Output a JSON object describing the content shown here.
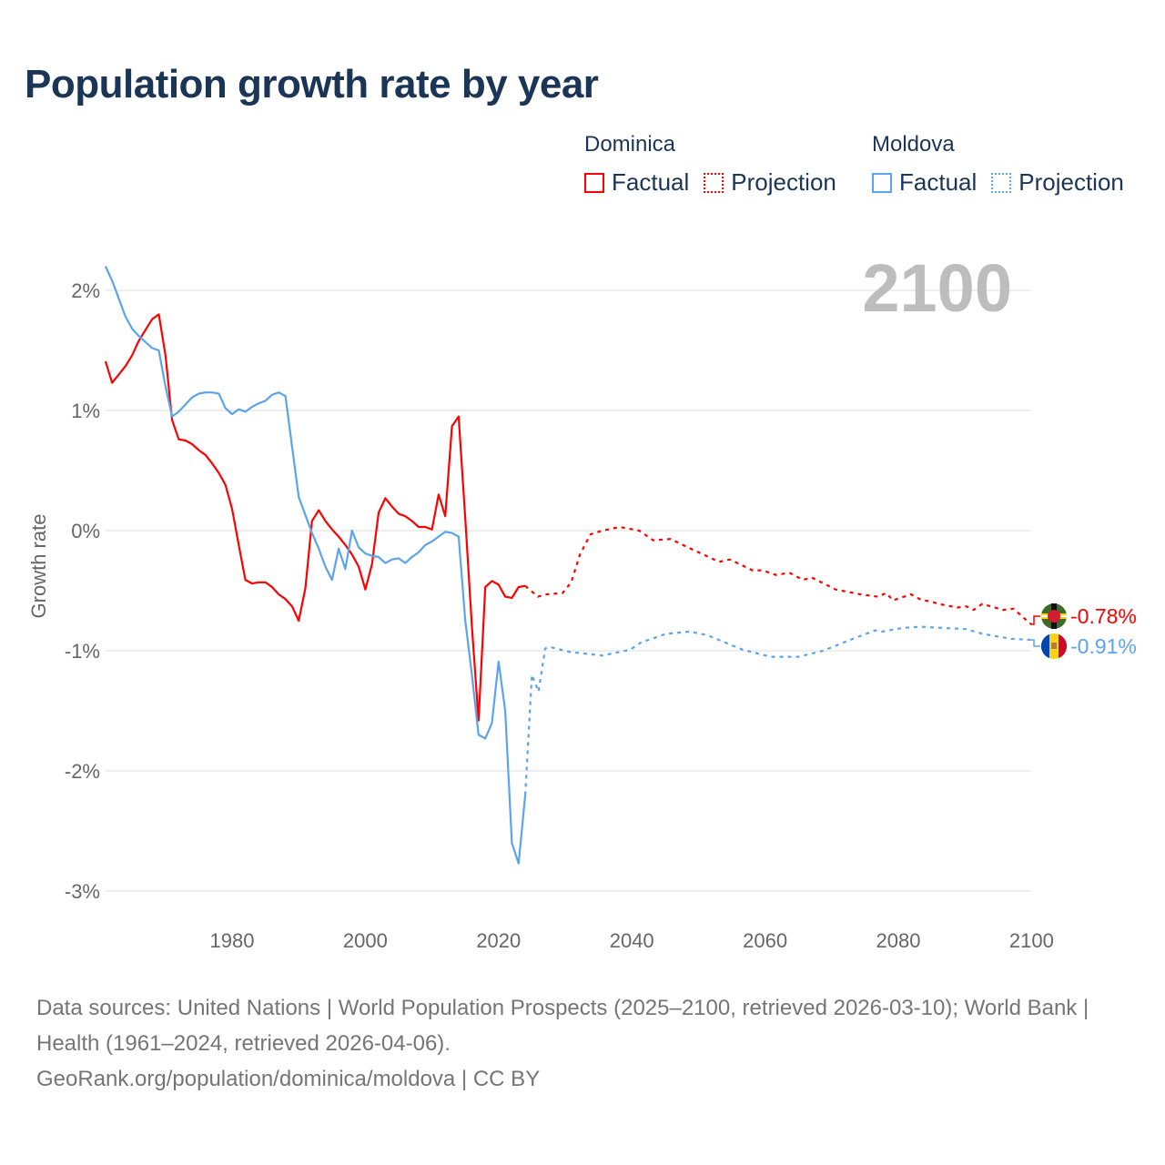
{
  "title": "Population growth rate by year",
  "legend": {
    "groups": [
      {
        "name": "Dominica",
        "factual": "Factual",
        "projection": "Projection",
        "color": "#ff0000"
      },
      {
        "name": "Moldova",
        "factual": "Factual",
        "projection": "Projection",
        "color": "#5ba4ec"
      }
    ]
  },
  "footer": {
    "sources": "Data sources: United Nations | World Population Prospects (2025–2100, retrieved 2026-03-10); World Bank | Health (1961–2024, retrieved 2026-04-06).",
    "credit": "GeoRank.org/population/dominica/moldova | CC BY"
  },
  "chart_data": {
    "type": "line",
    "title": "Population growth rate by year",
    "ylabel": "Growth rate",
    "xlabel": "",
    "xlim": [
      1961,
      2100
    ],
    "ylim": [
      -3.3,
      2.3
    ],
    "x_ticks": [
      1980,
      2000,
      2020,
      2040,
      2060,
      2080,
      2100
    ],
    "y_ticks": [
      2,
      1,
      0,
      -1,
      -2,
      -3
    ],
    "y_tick_labels": [
      "2%",
      "1%",
      "0%",
      "-1%",
      "-2%",
      "-3%"
    ],
    "grid": true,
    "year_watermark": "2100",
    "series": [
      {
        "name": "Dominica Factual",
        "color": "#ff0000",
        "style": "solid",
        "x": [
          1961,
          1962,
          1963,
          1964,
          1965,
          1966,
          1967,
          1968,
          1969,
          1970,
          1971,
          1972,
          1973,
          1974,
          1975,
          1976,
          1977,
          1978,
          1979,
          1980,
          1981,
          1982,
          1983,
          1984,
          1985,
          1986,
          1987,
          1988,
          1989,
          1990,
          1991,
          1992,
          1993,
          1994,
          1995,
          1996,
          1997,
          1998,
          1999,
          2000,
          2001,
          2002,
          2003,
          2004,
          2005,
          2006,
          2007,
          2008,
          2009,
          2010,
          2011,
          2012,
          2013,
          2014,
          2015,
          2016,
          2017,
          2018,
          2019,
          2020,
          2021,
          2022,
          2023,
          2024
        ],
        "y": [
          1.41,
          1.23,
          1.3,
          1.37,
          1.46,
          1.58,
          1.67,
          1.76,
          1.8,
          1.46,
          0.92,
          0.76,
          0.75,
          0.72,
          0.67,
          0.63,
          0.56,
          0.48,
          0.38,
          0.18,
          -0.12,
          -0.41,
          -0.44,
          -0.43,
          -0.43,
          -0.47,
          -0.53,
          -0.57,
          -0.63,
          -0.75,
          -0.48,
          0.08,
          0.17,
          0.08,
          0.01,
          -0.05,
          -0.12,
          -0.2,
          -0.3,
          -0.49,
          -0.28,
          0.15,
          0.27,
          0.2,
          0.14,
          0.12,
          0.08,
          0.03,
          0.03,
          0.01,
          0.3,
          0.12,
          0.87,
          0.95,
          0.1,
          -0.8,
          -1.58,
          -0.47,
          -0.42,
          -0.45,
          -0.55,
          -0.56,
          -0.47,
          -0.46
        ]
      },
      {
        "name": "Dominica Projection",
        "color": "#ff0000",
        "style": "dotted",
        "x": [
          2024,
          2025.9,
          2027.2,
          2029.6,
          2030.9,
          2032.2,
          2033.8,
          2035.6,
          2038.2,
          2041.1,
          2043.2,
          2045.8,
          2049.2,
          2053.1,
          2054.7,
          2058.1,
          2059.6,
          2061.7,
          2063.6,
          2065.7,
          2067,
          2070.6,
          2074.3,
          2076.9,
          2078.2,
          2079.2,
          2081.9,
          2083.2,
          2086.9,
          2088.9,
          2090.2,
          2091.3,
          2092.6,
          2095.7,
          2097.3,
          2099.7,
          2100
        ],
        "y": [
          -0.46,
          -0.55,
          -0.53,
          -0.52,
          -0.43,
          -0.2,
          -0.03,
          0.0,
          0.03,
          0.0,
          -0.08,
          -0.07,
          -0.16,
          -0.26,
          -0.24,
          -0.33,
          -0.33,
          -0.37,
          -0.35,
          -0.41,
          -0.39,
          -0.49,
          -0.53,
          -0.55,
          -0.52,
          -0.58,
          -0.53,
          -0.57,
          -0.62,
          -0.64,
          -0.63,
          -0.66,
          -0.61,
          -0.66,
          -0.65,
          -0.77,
          -0.78
        ]
      },
      {
        "name": "Moldova Factual",
        "color": "#5ba4ec",
        "style": "solid",
        "x": [
          1961,
          1962,
          1963,
          1964,
          1965,
          1966,
          1967,
          1968,
          1969,
          1970,
          1971,
          1972,
          1973,
          1974,
          1975,
          1976,
          1977,
          1978,
          1979,
          1980,
          1981,
          1982,
          1983,
          1984,
          1985,
          1986,
          1987,
          1988,
          1989,
          1990,
          1991,
          1992,
          1993,
          1994,
          1995,
          1996,
          1997,
          1998,
          1999,
          2000,
          2001,
          2002,
          2003,
          2004,
          2005,
          2006,
          2007,
          2008,
          2009,
          2010,
          2011,
          2012,
          2013,
          2014,
          2015,
          2016,
          2017,
          2018,
          2019,
          2020,
          2021,
          2022,
          2023,
          2024
        ],
        "y": [
          2.2,
          2.08,
          1.93,
          1.78,
          1.68,
          1.62,
          1.57,
          1.52,
          1.5,
          1.2,
          0.95,
          0.99,
          1.05,
          1.11,
          1.14,
          1.15,
          1.15,
          1.14,
          1.02,
          0.97,
          1.01,
          0.99,
          1.03,
          1.06,
          1.08,
          1.13,
          1.15,
          1.12,
          0.7,
          0.28,
          0.13,
          -0.02,
          -0.15,
          -0.3,
          -0.41,
          -0.15,
          -0.32,
          0.0,
          -0.14,
          -0.19,
          -0.21,
          -0.22,
          -0.27,
          -0.24,
          -0.23,
          -0.27,
          -0.22,
          -0.18,
          -0.12,
          -0.09,
          -0.05,
          -0.01,
          -0.02,
          -0.05,
          -0.75,
          -1.2,
          -1.7,
          -1.73,
          -1.6,
          -1.09,
          -1.5,
          -2.6,
          -2.77,
          -2.2
        ]
      },
      {
        "name": "Moldova Projection",
        "color": "#5ba4ec",
        "style": "dotted",
        "x": [
          2024,
          2025,
          2026,
          2027,
          2027.8,
          2030.7,
          2035.6,
          2039.8,
          2041.4,
          2045.1,
          2048.7,
          2051.3,
          2056.6,
          2060.8,
          2065,
          2068.7,
          2072.3,
          2076.5,
          2077.6,
          2080.7,
          2083.3,
          2090.1,
          2092.7,
          2096.9,
          2100
        ],
        "y": [
          -2.2,
          -1.2,
          -1.34,
          -0.98,
          -0.97,
          -1.01,
          -1.04,
          -0.99,
          -0.93,
          -0.86,
          -0.84,
          -0.87,
          -0.99,
          -1.05,
          -1.05,
          -1.0,
          -0.92,
          -0.83,
          -0.84,
          -0.81,
          -0.8,
          -0.82,
          -0.86,
          -0.9,
          -0.91
        ]
      }
    ],
    "end_labels": [
      {
        "country": "Dominica",
        "value": -0.78,
        "label": "-0.78%",
        "color": "#ff0000",
        "flag": "dominica-flag-icon"
      },
      {
        "country": "Moldova",
        "value": -0.91,
        "label": "-0.91%",
        "color": "#5ba4ec",
        "flag": "moldova-flag-icon"
      }
    ]
  }
}
